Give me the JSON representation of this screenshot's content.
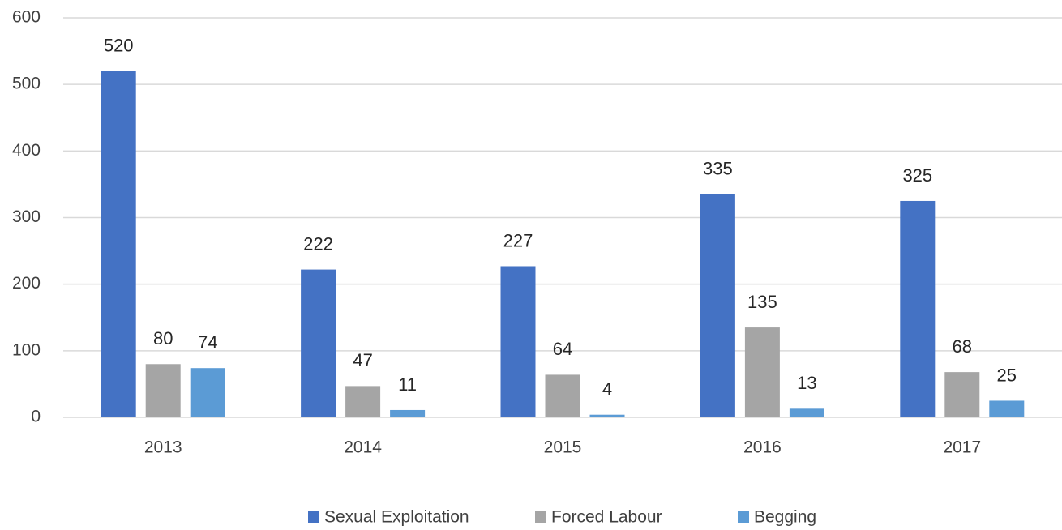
{
  "chart_data": {
    "type": "bar",
    "categories": [
      "2013",
      "2014",
      "2015",
      "2016",
      "2017"
    ],
    "series": [
      {
        "name": "Sexual Exploitation",
        "color": "#4472c4",
        "values": [
          520,
          222,
          227,
          335,
          325
        ]
      },
      {
        "name": "Forced Labour",
        "color": "#a5a5a5",
        "values": [
          80,
          47,
          64,
          135,
          68
        ]
      },
      {
        "name": "Begging",
        "color": "#5b9bd5",
        "values": [
          74,
          11,
          4,
          13,
          25
        ]
      }
    ],
    "ylim": [
      0,
      600
    ],
    "yticks": [
      0,
      100,
      200,
      300,
      400,
      500,
      600
    ],
    "grid": true,
    "legend": "bottom"
  }
}
